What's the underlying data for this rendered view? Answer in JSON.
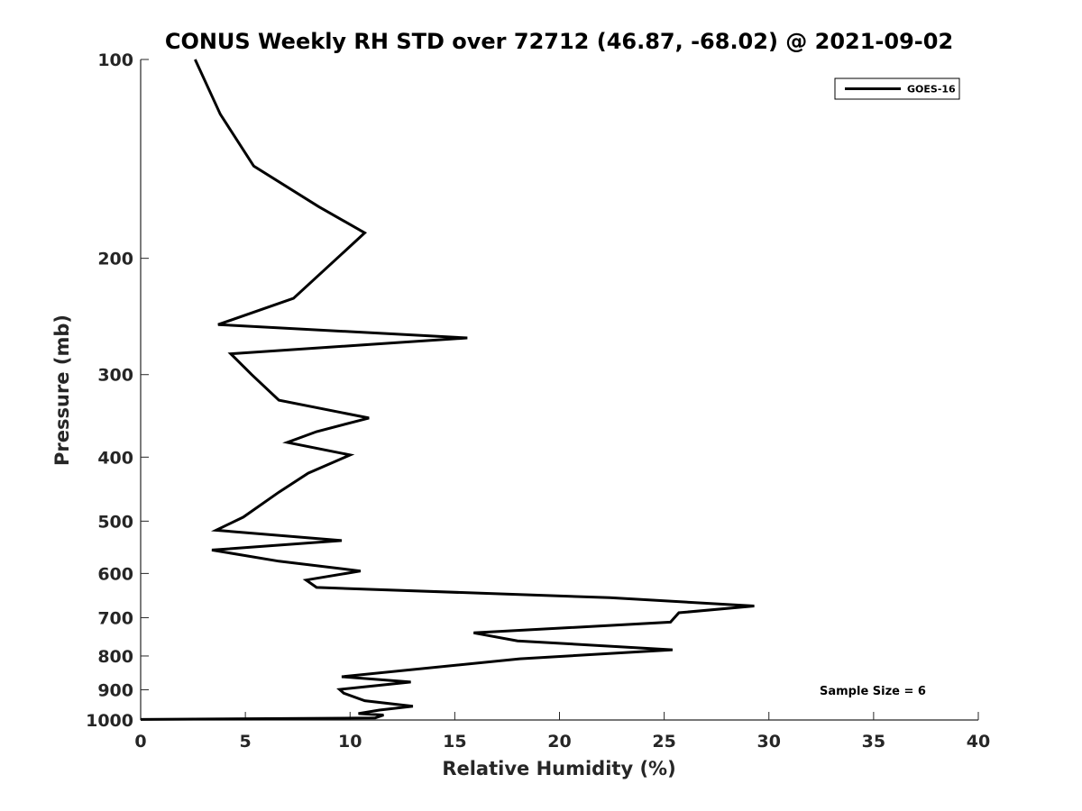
{
  "chart_data": {
    "type": "line",
    "title": "CONUS Weekly RH STD over 72712 (46.87, -68.02) @ 2021-09-02",
    "xlabel": "Relative Humidity (%)",
    "ylabel": "Pressure (mb)",
    "xlim": [
      0,
      40
    ],
    "ylim": [
      100,
      1000
    ],
    "y_scale": "log",
    "y_reversed": true,
    "xticks": [
      0,
      5,
      10,
      15,
      20,
      25,
      30,
      35,
      40
    ],
    "yticks": [
      100,
      200,
      300,
      400,
      500,
      600,
      700,
      800,
      900,
      1000
    ],
    "grid": false,
    "legend_position": "top-right",
    "annotation": "Sample Size = 6",
    "series": [
      {
        "name": "GOES-16",
        "color": "#000000",
        "x": [
          2.6,
          3.8,
          5.4,
          8.5,
          10.7,
          7.3,
          3.7,
          15.6,
          4.3,
          5.3,
          6.6,
          10.9,
          8.4,
          7.0,
          10.0,
          8.0,
          6.6,
          4.9,
          3.6,
          9.6,
          3.4,
          6.6,
          10.5,
          7.9,
          8.4,
          22.4,
          29.3,
          25.7,
          25.3,
          15.9,
          18.0,
          25.4,
          18.1,
          9.6,
          12.9,
          9.5,
          9.7,
          10.7,
          13.0,
          11.4,
          10.4,
          11.6,
          11.2,
          0.0
        ],
        "y": [
          100,
          121,
          145,
          167,
          183,
          230,
          252,
          264,
          279,
          300,
          328,
          349,
          366,
          380,
          397,
          423,
          452,
          493,
          516,
          535,
          553,
          575,
          595,
          614,
          630,
          653,
          672,
          688,
          711,
          738,
          759,
          783,
          808,
          860,
          876,
          899,
          911,
          935,
          953,
          966,
          978,
          983,
          993,
          998
        ]
      }
    ]
  }
}
